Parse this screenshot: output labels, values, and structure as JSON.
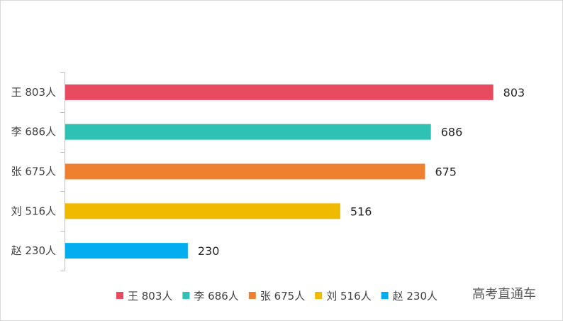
{
  "chart_data": {
    "type": "bar",
    "orientation": "horizontal",
    "categories": [
      "王 803人",
      "李 686人",
      "张 675人",
      "刘 516人",
      "赵 230人"
    ],
    "values": [
      803,
      686,
      675,
      516,
      230
    ],
    "colors": [
      "#e84b60",
      "#2fc1b4",
      "#ef8030",
      "#f0ba00",
      "#02aeef"
    ],
    "legend": [
      "王 803人",
      "李 686人",
      "张 675人",
      "刘 516人",
      "赵 230人"
    ],
    "legend_position": "bottom",
    "xlim": [
      0,
      850
    ],
    "grid": false,
    "title": "",
    "xlabel": "",
    "ylabel": ""
  },
  "watermark": "高考直通车"
}
